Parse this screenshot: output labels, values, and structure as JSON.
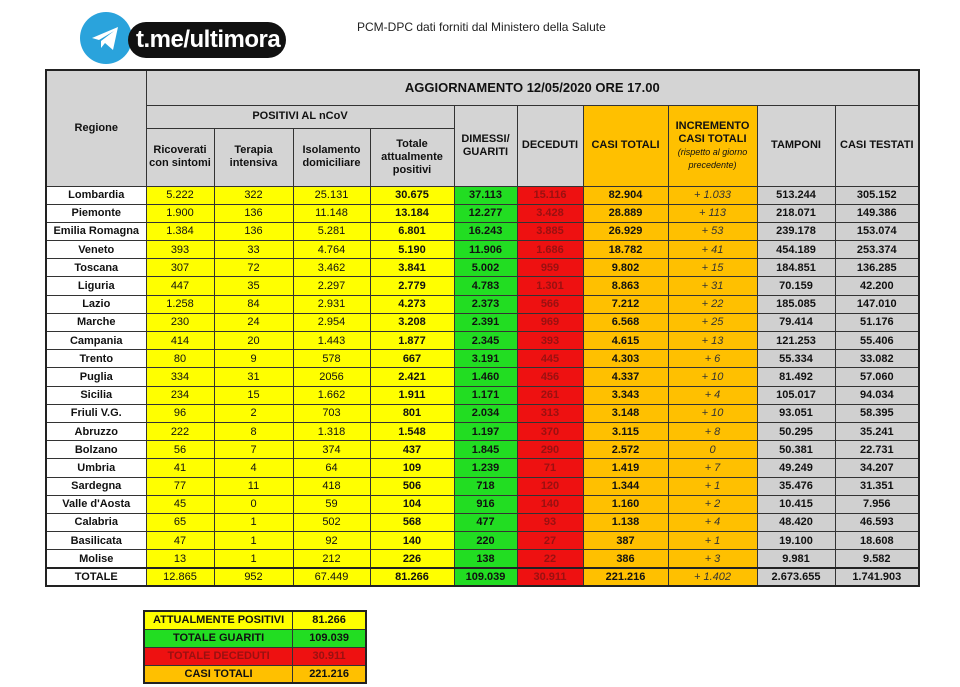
{
  "logo": {
    "text": "t.me/ultimora",
    "icon": "telegram-icon"
  },
  "source": "PCM-DPC dati forniti dal Ministero della Salute",
  "header": {
    "regione": "Regione",
    "title": "AGGIORNAMENTO 12/05/2020 ORE 17.00",
    "positivi": "POSITIVI AL nCoV",
    "ricoverati": "Ricoverati con sintomi",
    "terapia": "Terapia intensiva",
    "isolamento": "Isolamento domiciliare",
    "totale_pos": "Totale attualmente positivi",
    "dimessi": "DIMESSI/ GUARITI",
    "deceduti": "DECEDUTI",
    "casi": "CASI TOTALI",
    "incremento": "INCREMENTO CASI TOTALI",
    "incremento_sub": "(rispetto al giorno precedente)",
    "tamponi": "TAMPONI",
    "testati": "CASI TESTATI"
  },
  "rows": [
    [
      "Lombardia",
      "5.222",
      "322",
      "25.131",
      "30.675",
      "37.113",
      "15.116",
      "82.904",
      "+ 1.033",
      "513.244",
      "305.152"
    ],
    [
      "Piemonte",
      "1.900",
      "136",
      "11.148",
      "13.184",
      "12.277",
      "3.428",
      "28.889",
      "+ 113",
      "218.071",
      "149.386"
    ],
    [
      "Emilia Romagna",
      "1.384",
      "136",
      "5.281",
      "6.801",
      "16.243",
      "3.885",
      "26.929",
      "+ 53",
      "239.178",
      "153.074"
    ],
    [
      "Veneto",
      "393",
      "33",
      "4.764",
      "5.190",
      "11.906",
      "1.686",
      "18.782",
      "+ 41",
      "454.189",
      "253.374"
    ],
    [
      "Toscana",
      "307",
      "72",
      "3.462",
      "3.841",
      "5.002",
      "959",
      "9.802",
      "+ 15",
      "184.851",
      "136.285"
    ],
    [
      "Liguria",
      "447",
      "35",
      "2.297",
      "2.779",
      "4.783",
      "1.301",
      "8.863",
      "+ 31",
      "70.159",
      "42.200"
    ],
    [
      "Lazio",
      "1.258",
      "84",
      "2.931",
      "4.273",
      "2.373",
      "566",
      "7.212",
      "+ 22",
      "185.085",
      "147.010"
    ],
    [
      "Marche",
      "230",
      "24",
      "2.954",
      "3.208",
      "2.391",
      "969",
      "6.568",
      "+ 25",
      "79.414",
      "51.176"
    ],
    [
      "Campania",
      "414",
      "20",
      "1.443",
      "1.877",
      "2.345",
      "393",
      "4.615",
      "+ 13",
      "121.253",
      "55.406"
    ],
    [
      "Trento",
      "80",
      "9",
      "578",
      "667",
      "3.191",
      "445",
      "4.303",
      "+ 6",
      "55.334",
      "33.082"
    ],
    [
      "Puglia",
      "334",
      "31",
      "2056",
      "2.421",
      "1.460",
      "456",
      "4.337",
      "+ 10",
      "81.492",
      "57.060"
    ],
    [
      "Sicilia",
      "234",
      "15",
      "1.662",
      "1.911",
      "1.171",
      "261",
      "3.343",
      "+ 4",
      "105.017",
      "94.034"
    ],
    [
      "Friuli V.G.",
      "96",
      "2",
      "703",
      "801",
      "2.034",
      "313",
      "3.148",
      "+ 10",
      "93.051",
      "58.395"
    ],
    [
      "Abruzzo",
      "222",
      "8",
      "1.318",
      "1.548",
      "1.197",
      "370",
      "3.115",
      "+ 8",
      "50.295",
      "35.241"
    ],
    [
      "Bolzano",
      "56",
      "7",
      "374",
      "437",
      "1.845",
      "290",
      "2.572",
      "0",
      "50.381",
      "22.731"
    ],
    [
      "Umbria",
      "41",
      "4",
      "64",
      "109",
      "1.239",
      "71",
      "1.419",
      "+ 7",
      "49.249",
      "34.207"
    ],
    [
      "Sardegna",
      "77",
      "11",
      "418",
      "506",
      "718",
      "120",
      "1.344",
      "+ 1",
      "35.476",
      "31.351"
    ],
    [
      "Valle d'Aosta",
      "45",
      "0",
      "59",
      "104",
      "916",
      "140",
      "1.160",
      "+ 2",
      "10.415",
      "7.956"
    ],
    [
      "Calabria",
      "65",
      "1",
      "502",
      "568",
      "477",
      "93",
      "1.138",
      "+ 4",
      "48.420",
      "46.593"
    ],
    [
      "Basilicata",
      "47",
      "1",
      "92",
      "140",
      "220",
      "27",
      "387",
      "+ 1",
      "19.100",
      "18.608"
    ],
    [
      "Molise",
      "13",
      "1",
      "212",
      "226",
      "138",
      "22",
      "386",
      "+ 3",
      "9.981",
      "9.582"
    ]
  ],
  "totale": [
    "TOTALE",
    "12.865",
    "952",
    "67.449",
    "81.266",
    "109.039",
    "30.911",
    "221.216",
    "+ 1.402",
    "2.673.655",
    "1.741.903"
  ],
  "summary": [
    {
      "label": "ATTUALMENTE POSITIVI",
      "value": "81.266",
      "color": "#ffff00"
    },
    {
      "label": "TOTALE GUARITI",
      "value": "109.039",
      "color": "#22dd22"
    },
    {
      "label": "TOTALE DECEDUTI",
      "value": "30.911",
      "color": "#ee1111"
    },
    {
      "label": "CASI TOTALI",
      "value": "221.216",
      "color": "#ffc000"
    }
  ]
}
